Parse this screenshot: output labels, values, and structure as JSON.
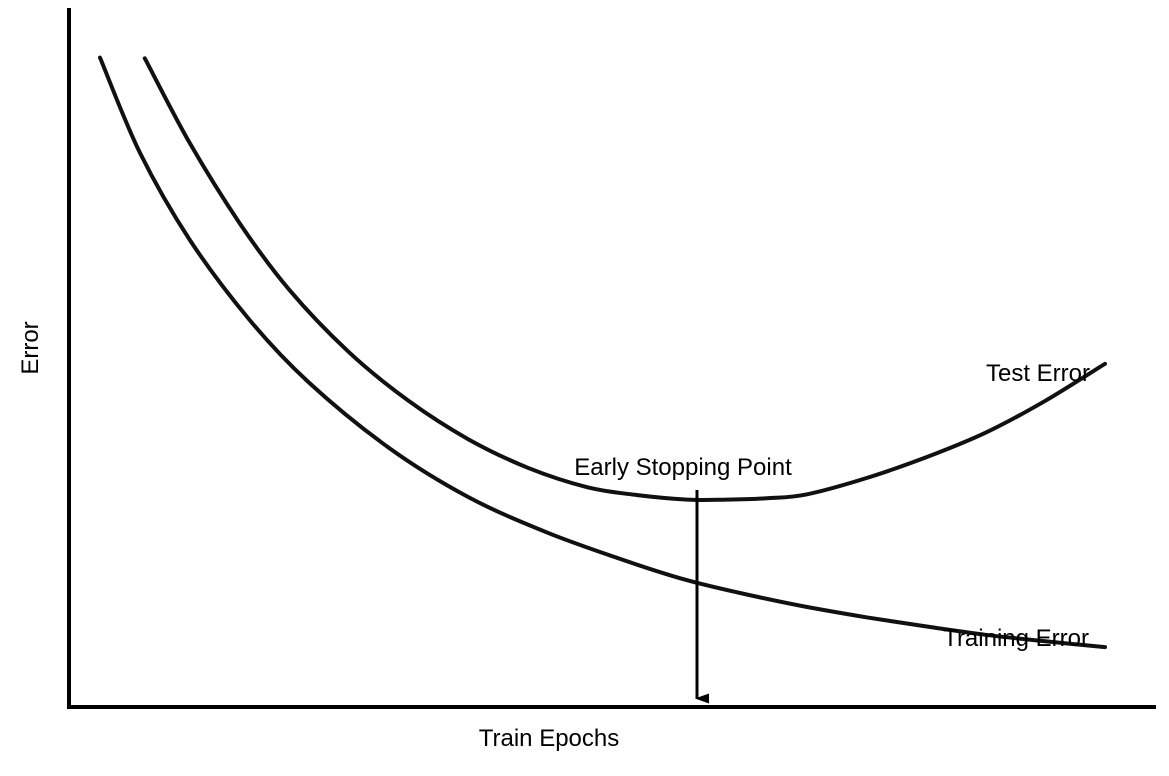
{
  "chart_data": {
    "type": "line",
    "title": "",
    "xlabel": "Train Epochs",
    "ylabel": "Error",
    "xlim": [
      0,
      100
    ],
    "ylim": [
      0,
      100
    ],
    "grid": false,
    "ticks": false,
    "series": [
      {
        "name": "Test Error",
        "x": [
          3.5,
          8,
          13,
          18,
          24,
          30,
          36,
          42,
          48,
          53,
          58,
          62,
          66,
          70,
          76,
          82,
          88,
          94,
          100
        ],
        "y": [
          99.5,
          86.5,
          74.2,
          63.9,
          54.3,
          46.8,
          40.9,
          36.5,
          33.5,
          32.3,
          31.6,
          31.6,
          31.8,
          32.4,
          34.9,
          38.1,
          41.9,
          46.8,
          52.5
        ]
      },
      {
        "name": "Training Error",
        "x": [
          -1,
          3,
          8,
          14,
          20,
          28,
          36,
          44,
          52,
          58,
          64,
          70,
          76,
          82,
          88,
          94,
          100
        ],
        "y": [
          99.6,
          85,
          71.6,
          59.3,
          49.6,
          39.6,
          32,
          26.5,
          22.1,
          19.2,
          17,
          15.1,
          13.5,
          12.1,
          10.8,
          9.8,
          8.9
        ]
      }
    ],
    "annotations": [
      {
        "text": "Early Stopping Point",
        "x": 59,
        "y": 31.6,
        "arrow_to_y": 1
      }
    ]
  }
}
